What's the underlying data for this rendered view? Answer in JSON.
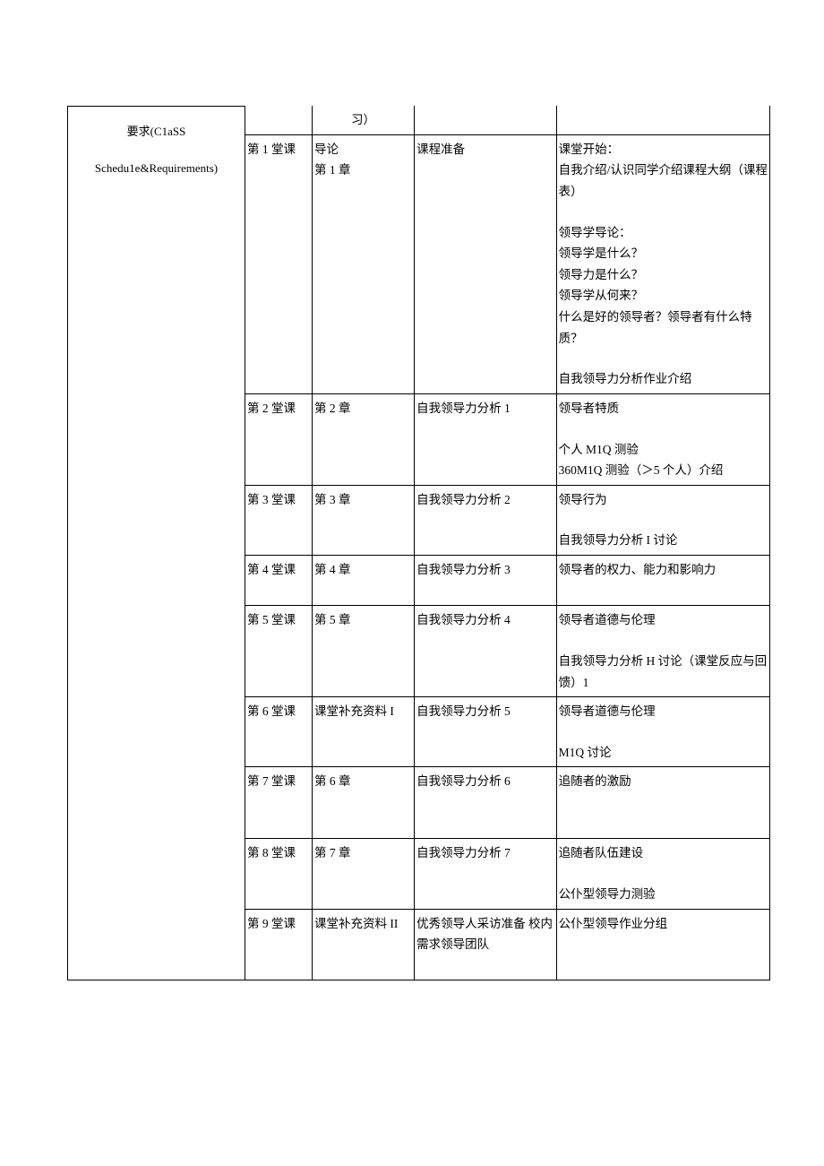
{
  "left": {
    "line1": "要求(C1aSS",
    "line2": "Schedu1e&Requirements)"
  },
  "header_cell": "习）",
  "rows": [
    {
      "session": "第 1 堂课",
      "reading": "导论\n第 1 章",
      "assignment": "课程准备",
      "content": "课堂开始：\n自我介绍/认识同学介绍课程大纲（课程表）\n|SP|领导学导论：\n领导学是什么？\n领导力是什么？\n领导学从何来？\n什么是好的领导者？领导者有什么特质？\n|SP|自我领导力分析作业介绍"
    },
    {
      "session": "第 2 堂课",
      "reading": "第 2 章",
      "assignment": "自我领导力分析 1",
      "content": "领导者特质\n|SP|个人 M1Q 测验\n360M1Q 测验（＞5 个人）介绍"
    },
    {
      "session": "第 3 堂课",
      "reading": "第 3 章",
      "assignment": "自我领导力分析 2",
      "content": "领导行为\n|SP|自我领导力分析 I 讨论"
    },
    {
      "session": "第 4 堂课",
      "reading": "第 4 章",
      "assignment": "自我领导力分析 3",
      "content": "领导者的权力、能力和影响力\n "
    },
    {
      "session": "第 5 堂课",
      "reading": "第 5 章",
      "assignment": "自我领导力分析 4",
      "content": "领导者道德与伦理\n|SP|自我领导力分析 H 讨论（课堂反应与回馈）1"
    },
    {
      "session": "第 6 堂课",
      "reading": "课堂补充资料 I",
      "assignment": "自我领导力分析 5",
      "content": "领导者道德与伦理\n|SP2|M1Q 讨论"
    },
    {
      "session": "第 7 堂课",
      "reading": "第 6 章",
      "assignment": "自我领导力分析 6",
      "content": "追随者的激励\n \n "
    },
    {
      "session": "第 8 堂课",
      "reading": "第 7 章",
      "assignment": "自我领导力分析 7",
      "content": "追随者队伍建设\n|SP2|公仆型领导力测验"
    },
    {
      "session": "第 9 堂课",
      "reading": "课堂补充资料 II",
      "assignment": "优秀领导人采访准备 校内需求领导团队",
      "content": "公仆型领导作业分组\n \n "
    }
  ]
}
